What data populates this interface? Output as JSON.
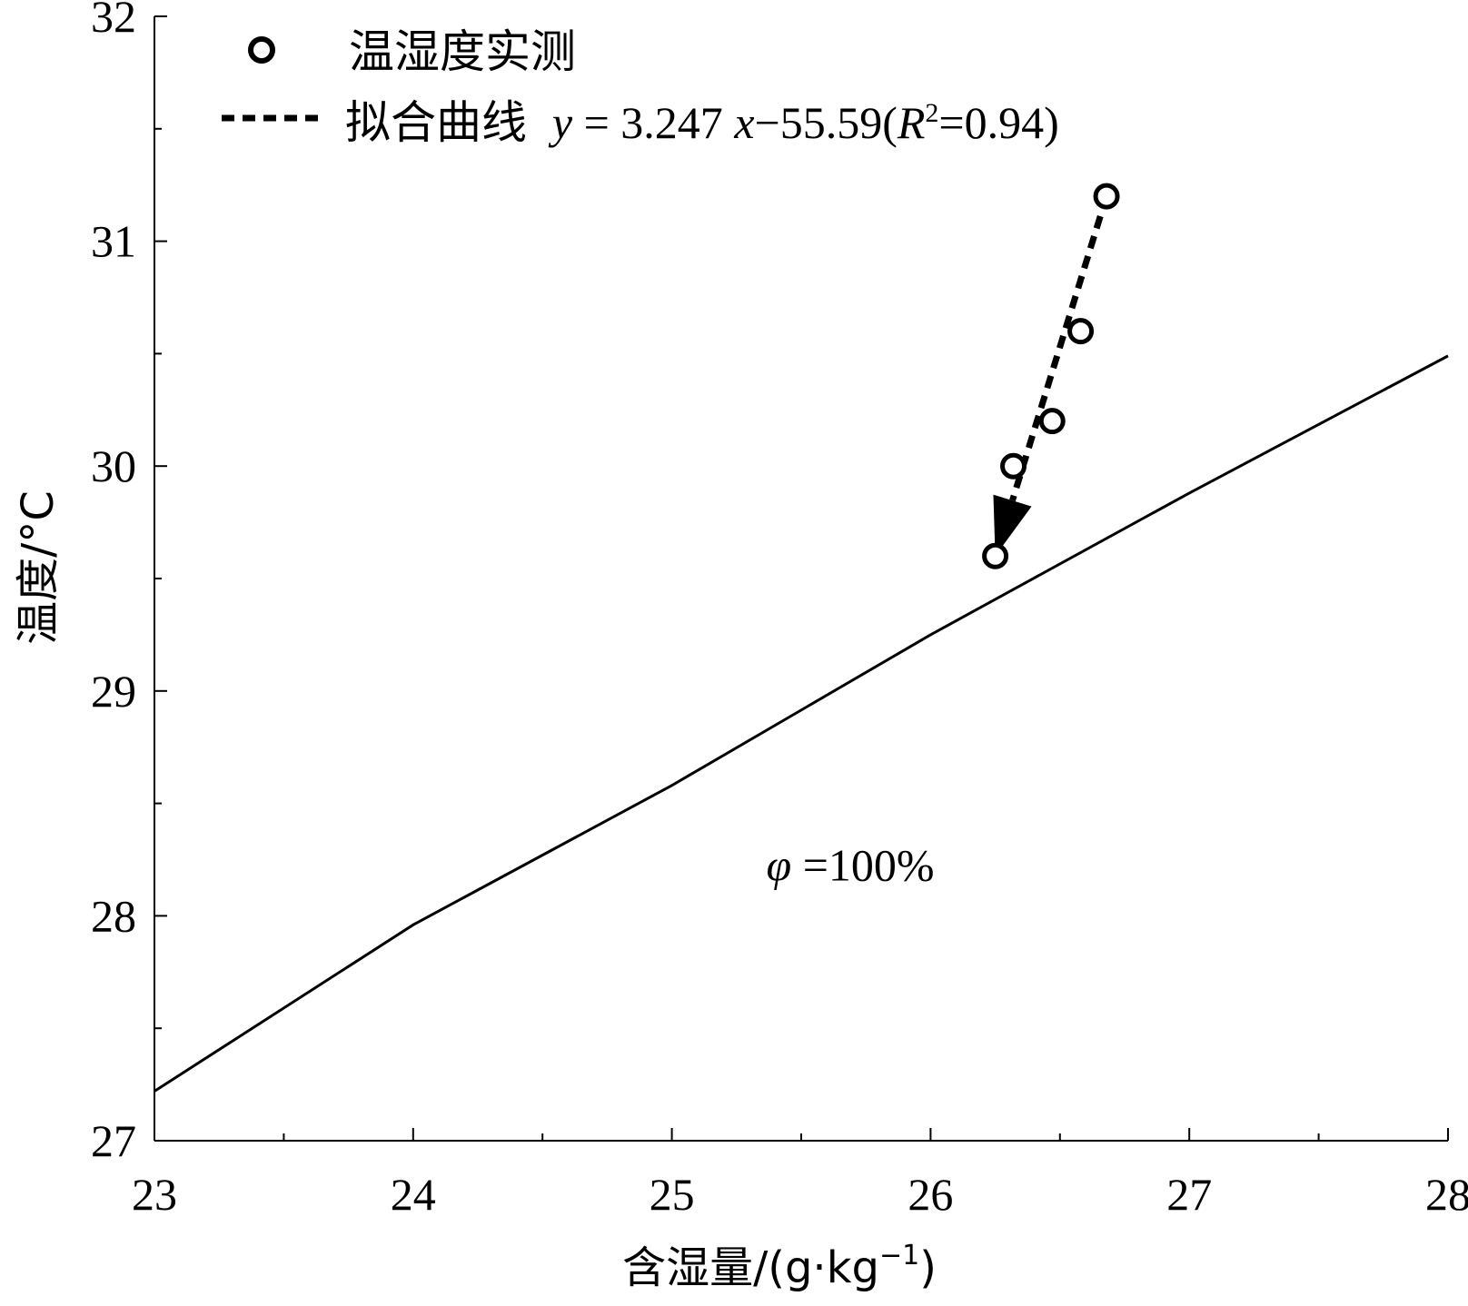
{
  "chart_data": {
    "type": "scatter",
    "title": "",
    "xlabel": "含湿量/(g·kg⁻¹)",
    "ylabel": "温度/°C",
    "xlim": [
      23,
      28
    ],
    "ylim": [
      27,
      32
    ],
    "x_ticks": [
      "23",
      "24",
      "25",
      "26",
      "27",
      "28"
    ],
    "y_ticks": [
      "27",
      "28",
      "29",
      "30",
      "31",
      "32"
    ],
    "grid": false,
    "legend_position": "top-left",
    "series": [
      {
        "name": "温湿度实测",
        "kind": "scatter",
        "marker": "open-circle",
        "x": [
          26.25,
          26.32,
          26.47,
          26.58,
          26.68
        ],
        "y": [
          29.6,
          30.0,
          30.2,
          30.6,
          31.2
        ]
      },
      {
        "name": "拟合曲线",
        "kind": "line",
        "style": "dashed",
        "equation": "y = 3.247 x−55.59(R²=0.94)",
        "x": [
          26.68,
          26.25
        ],
        "y": [
          31.2,
          29.6
        ],
        "arrow": "end"
      },
      {
        "name": "φ =100%",
        "kind": "line",
        "style": "solid",
        "x": [
          23,
          24,
          25,
          26,
          27,
          28
        ],
        "y": [
          27.22,
          27.96,
          28.58,
          29.25,
          29.88,
          30.49
        ]
      }
    ],
    "legend": {
      "scatter_label": "温湿度实测",
      "fit_label": "拟合曲线",
      "fit_eq_y": "y",
      "fit_eq_mid": " = 3.247 ",
      "fit_eq_x": "x",
      "fit_eq_rest": "−55.59(",
      "fit_eq_R": "R",
      "fit_eq_sup": "2",
      "fit_eq_end": "=0.94)"
    },
    "annotation": {
      "phi_symbol": "φ",
      "phi_value": " =100%",
      "x": 25.4,
      "y": 28.23
    },
    "xlabel_parts": {
      "main": "含湿量/(g·kg",
      "sup": "−1",
      "end": ")"
    }
  }
}
